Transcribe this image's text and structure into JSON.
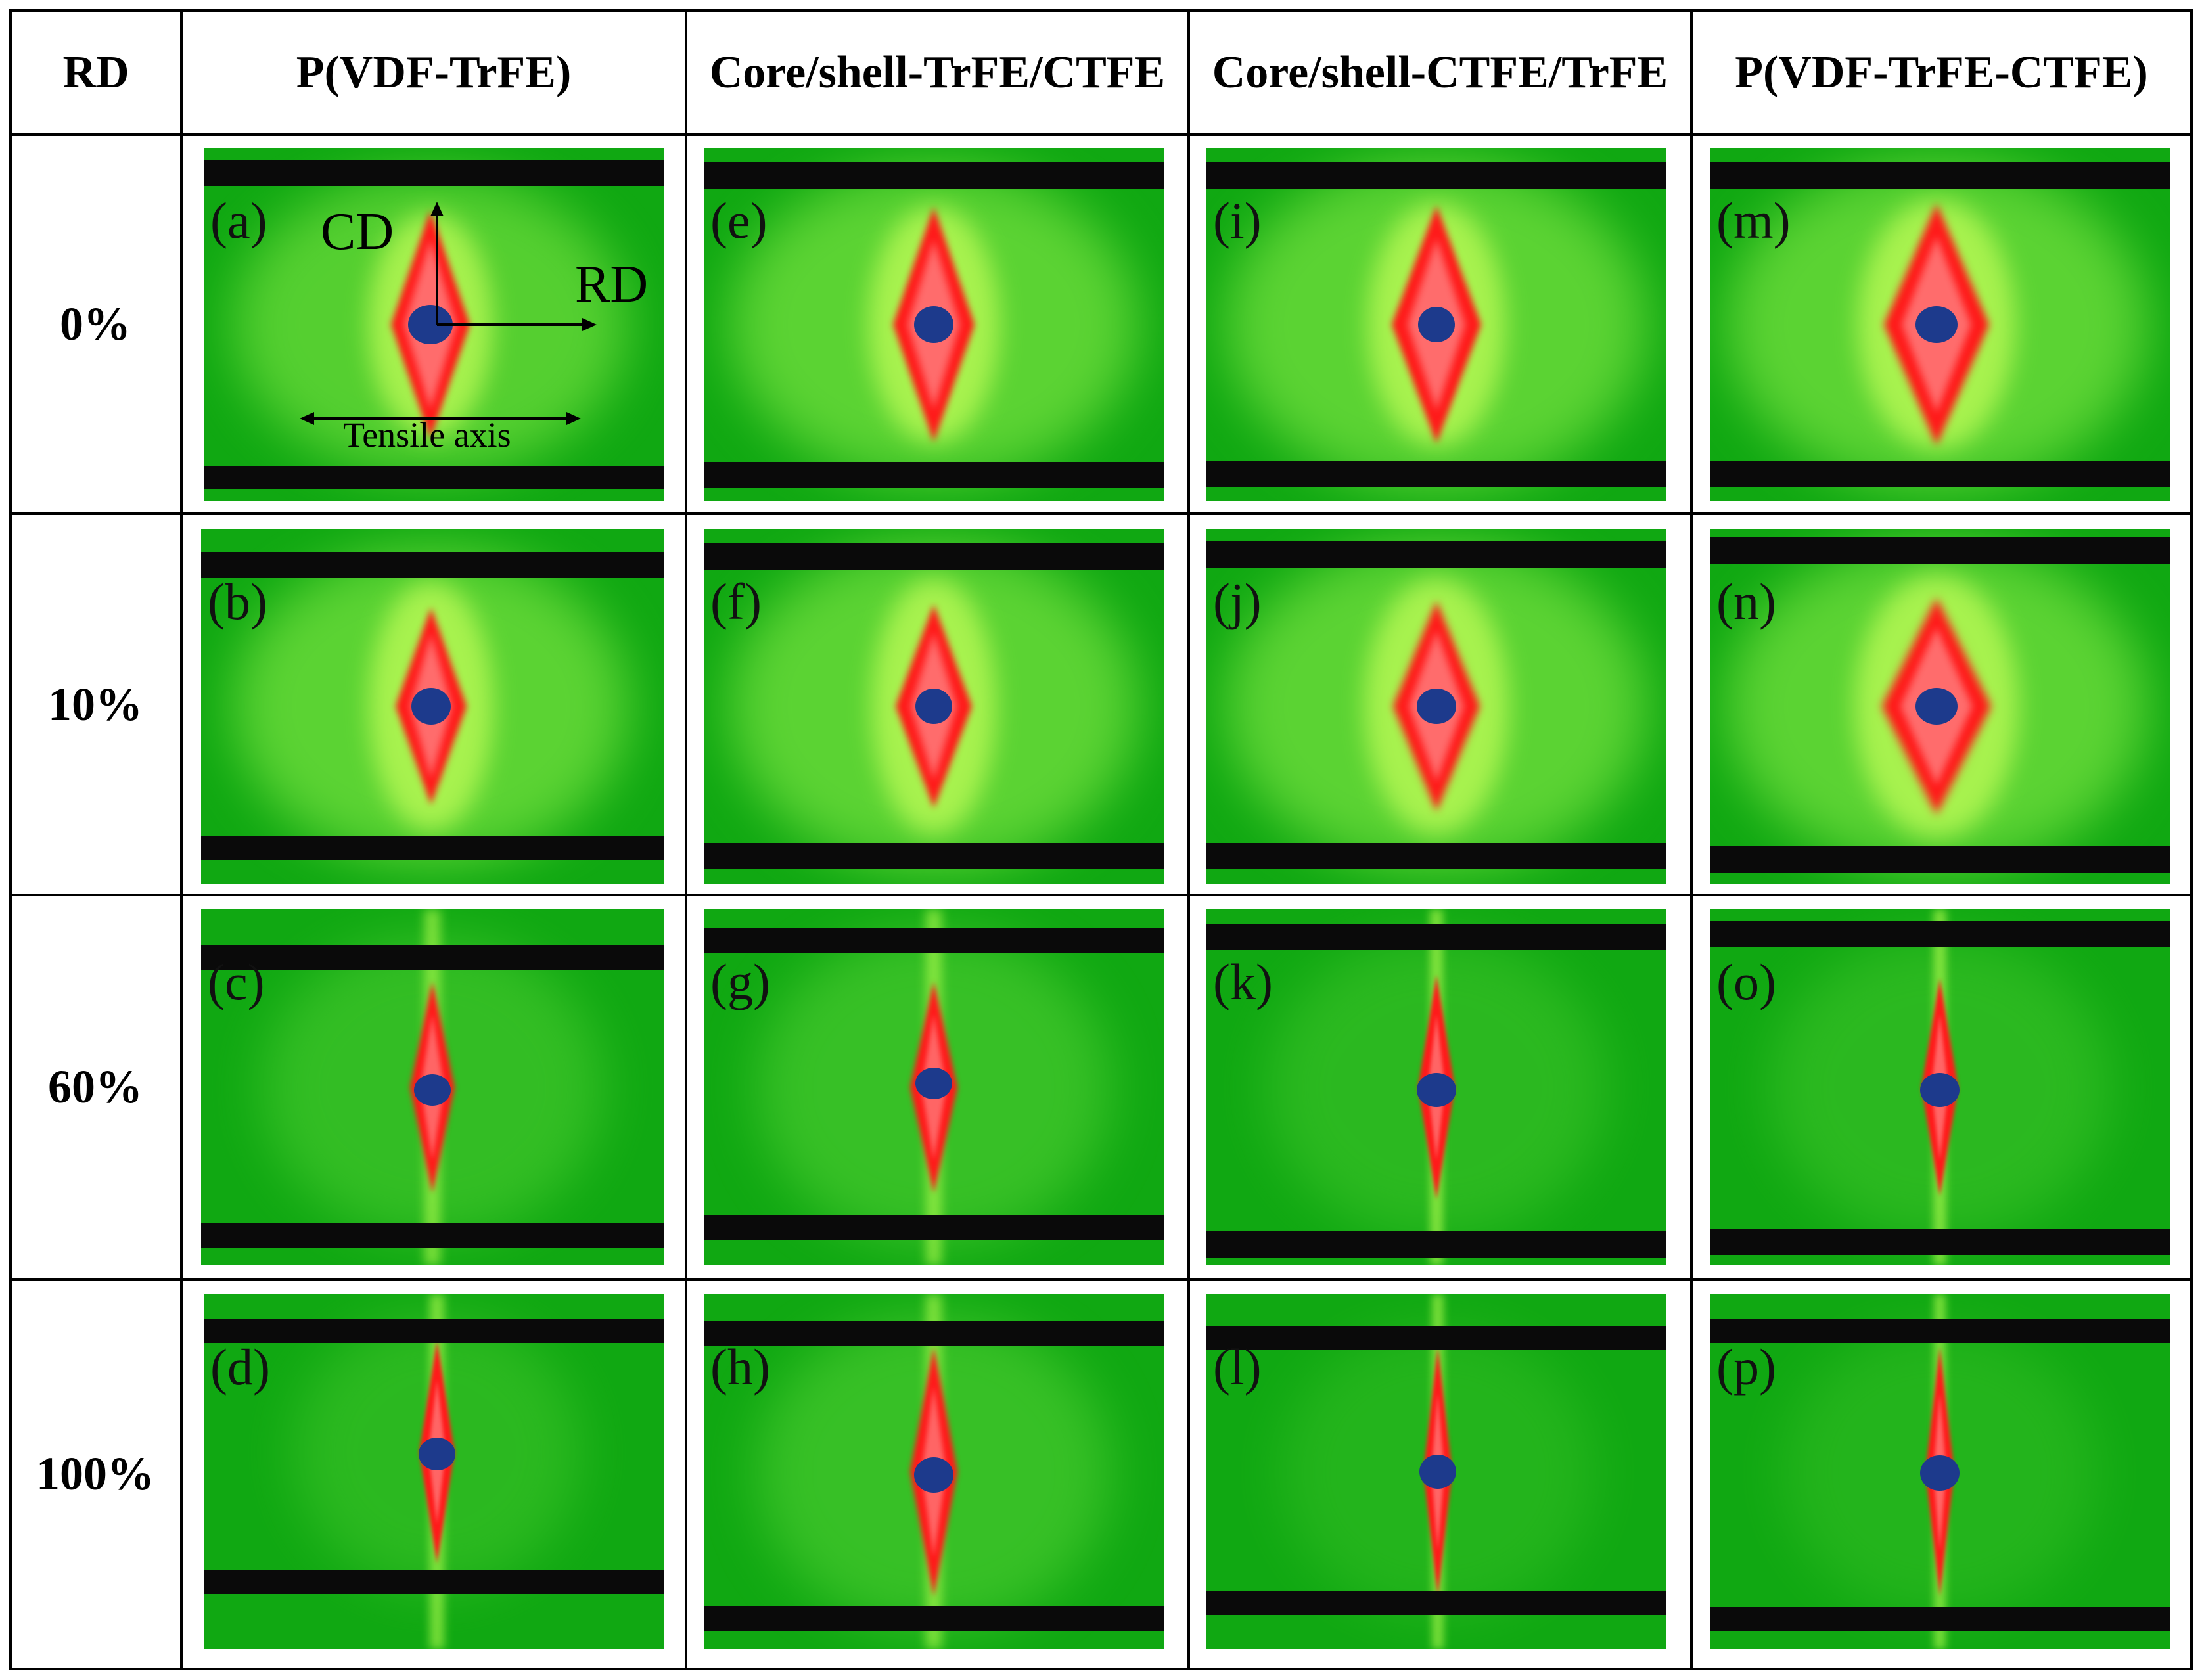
{
  "table": {
    "corner_header": "RD",
    "column_headers": [
      "P(VDF-TrFE)",
      "Core/shell-TrFE/CTFE",
      "Core/shell-CTFE/TrFE",
      "P(VDF-TrFE-CTFE)"
    ],
    "row_labels": [
      "0%",
      "10%",
      "60%",
      "100%"
    ],
    "panel_labels": [
      [
        "(a)",
        "(e)",
        "(i)",
        "(m)"
      ],
      [
        "(b)",
        "(f)",
        "(j)",
        "(n)"
      ],
      [
        "(c)",
        "(g)",
        "(k)",
        "(o)"
      ],
      [
        "(d)",
        "(h)",
        "(l)",
        "(p)"
      ]
    ]
  },
  "annotations": {
    "vertical_axis": "CD",
    "horizontal_axis": "RD",
    "tensile_axis": "Tensile axis"
  },
  "colors": {
    "background_green": "#10a812",
    "halo_green": "#8ef04a",
    "streak_red": "#ff1a1a",
    "beamstop_blue": "#1d3a8c",
    "bar_black": "#0a0a0a"
  }
}
